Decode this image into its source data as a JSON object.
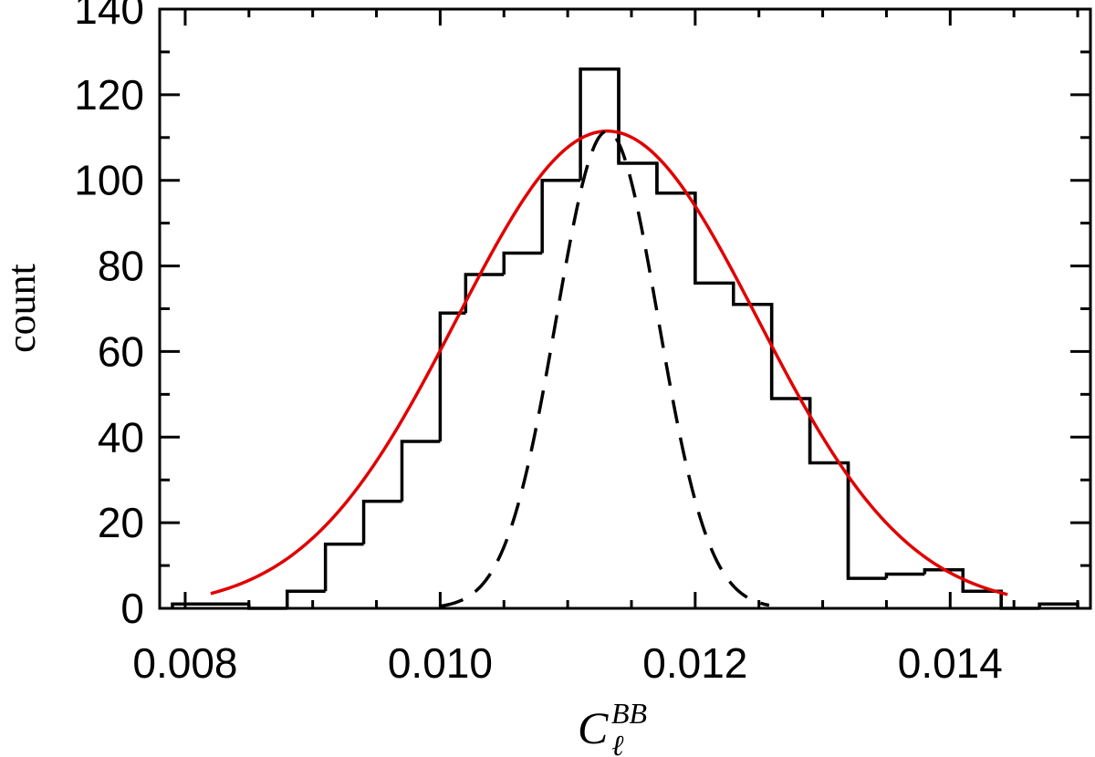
{
  "chart_data": {
    "type": "bar",
    "title": "",
    "xlabel": {
      "main": "C",
      "subscript": "ℓ",
      "superscript": "BB"
    },
    "ylabel": "count",
    "xlim": [
      0.0078,
      0.0151
    ],
    "ylim": [
      0,
      140
    ],
    "x_ticks": [
      0.008,
      0.01,
      0.012,
      0.014
    ],
    "x_tick_labels": [
      "0.008",
      "0.010",
      "0.012",
      "0.014"
    ],
    "x_minor_step": 0.0005,
    "y_ticks": [
      0,
      20,
      40,
      60,
      80,
      100,
      120,
      140
    ],
    "y_tick_labels": [
      "0",
      "20",
      "40",
      "60",
      "80",
      "100",
      "120",
      "140"
    ],
    "y_minor_step": 10,
    "grid": false,
    "histogram": {
      "color": "#000000",
      "bins": [
        {
          "x0": 0.0079,
          "x1": 0.0085,
          "count": 1
        },
        {
          "x0": 0.0085,
          "x1": 0.0088,
          "count": 0
        },
        {
          "x0": 0.0088,
          "x1": 0.0091,
          "count": 4
        },
        {
          "x0": 0.0091,
          "x1": 0.0094,
          "count": 15
        },
        {
          "x0": 0.0094,
          "x1": 0.0097,
          "count": 25
        },
        {
          "x0": 0.0097,
          "x1": 0.01,
          "count": 39
        },
        {
          "x0": 0.01,
          "x1": 0.0102,
          "count": 69
        },
        {
          "x0": 0.0102,
          "x1": 0.0105,
          "count": 78
        },
        {
          "x0": 0.0105,
          "x1": 0.0108,
          "count": 83
        },
        {
          "x0": 0.0108,
          "x1": 0.0111,
          "count": 100
        },
        {
          "x0": 0.0111,
          "x1": 0.0114,
          "count": 126
        },
        {
          "x0": 0.0114,
          "x1": 0.0117,
          "count": 104
        },
        {
          "x0": 0.0117,
          "x1": 0.012,
          "count": 97
        },
        {
          "x0": 0.012,
          "x1": 0.0123,
          "count": 76
        },
        {
          "x0": 0.0123,
          "x1": 0.0126,
          "count": 71
        },
        {
          "x0": 0.0126,
          "x1": 0.0129,
          "count": 49
        },
        {
          "x0": 0.0129,
          "x1": 0.0132,
          "count": 34
        },
        {
          "x0": 0.0132,
          "x1": 0.0135,
          "count": 7
        },
        {
          "x0": 0.0135,
          "x1": 0.0138,
          "count": 8
        },
        {
          "x0": 0.0138,
          "x1": 0.0141,
          "count": 9
        },
        {
          "x0": 0.0141,
          "x1": 0.0144,
          "count": 4
        },
        {
          "x0": 0.0144,
          "x1": 0.0147,
          "count": 0
        },
        {
          "x0": 0.0147,
          "x1": 0.015,
          "count": 1
        }
      ]
    },
    "curves": [
      {
        "style": "solid",
        "color": "#e00000",
        "mean": 0.01131,
        "sigma": 0.00118,
        "amplitude": 111.5,
        "x_range": [
          0.0082,
          0.01445
        ]
      },
      {
        "style": "dashed",
        "color": "#000000",
        "mean": 0.01131,
        "sigma": 0.0004,
        "amplitude": 111.5,
        "x_range": [
          0.01,
          0.01258
        ]
      }
    ]
  }
}
